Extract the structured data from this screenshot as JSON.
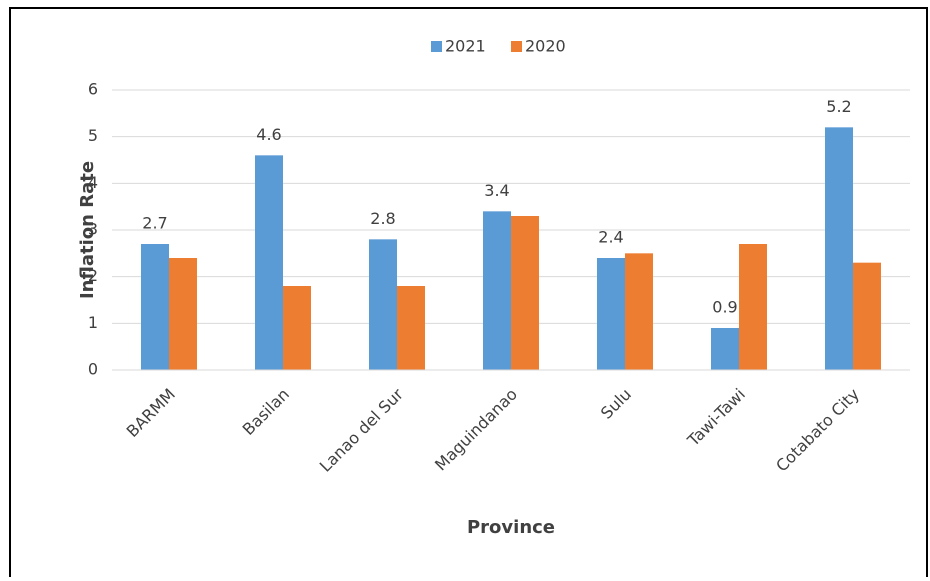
{
  "chart_data": {
    "type": "bar",
    "categories": [
      "BARMM",
      "Basilan",
      "Lanao del Sur",
      "Maguindanao",
      "Sulu",
      "Tawi-Tawi",
      "Cotabato City"
    ],
    "series": [
      {
        "name": "2021",
        "color": "#5b9bd5",
        "values": [
          2.7,
          4.6,
          2.8,
          3.4,
          2.4,
          0.9,
          5.2
        ]
      },
      {
        "name": "2020",
        "color": "#ed7d31",
        "values": [
          2.4,
          1.8,
          1.8,
          3.3,
          2.5,
          2.7,
          2.3
        ]
      }
    ],
    "x_label": "Province",
    "y_label": "Inflation Rate",
    "ylim": [
      0,
      6
    ],
    "yticks": [
      0,
      1,
      2,
      3,
      4,
      5,
      6
    ],
    "grid": true,
    "legend": "top",
    "data_labels_series": "2021"
  }
}
